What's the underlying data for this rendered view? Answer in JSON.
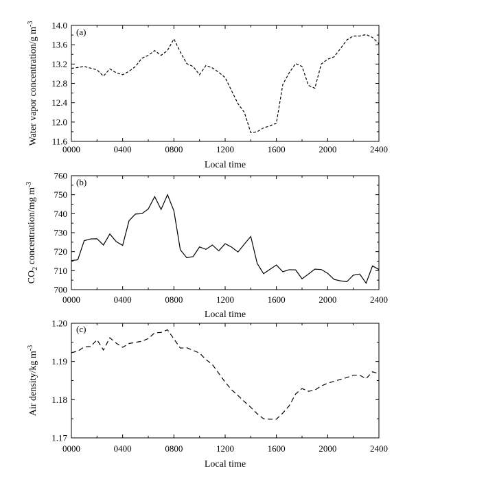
{
  "chart_data": [
    {
      "id": "a",
      "type": "line",
      "panel_label": "(a)",
      "xlabel": "Local time",
      "ylabel_main": "Water vapor concentration/g m",
      "ylabel_sup": "-3",
      "ylabel_sub": "",
      "ylabel_tail": "",
      "line_style": "short-dash",
      "xlim": [
        0,
        2400
      ],
      "ylim": [
        11.6,
        14.0
      ],
      "xticks": [
        0,
        400,
        800,
        1200,
        1600,
        2000,
        2400
      ],
      "xtick_labels": [
        "0000",
        "0400",
        "0800",
        "1200",
        "1600",
        "2000",
        "2400"
      ],
      "yticks": [
        11.6,
        12.0,
        12.4,
        12.8,
        13.2,
        13.6,
        14.0
      ],
      "ytick_labels": [
        "11.6",
        "12.0",
        "12.4",
        "12.8",
        "13.2",
        "13.6",
        "14.0"
      ],
      "x": [
        0,
        100,
        200,
        250,
        300,
        350,
        400,
        450,
        500,
        550,
        600,
        650,
        700,
        750,
        800,
        850,
        900,
        950,
        1000,
        1050,
        1100,
        1150,
        1200,
        1250,
        1300,
        1350,
        1400,
        1450,
        1500,
        1550,
        1600,
        1650,
        1700,
        1750,
        1800,
        1850,
        1900,
        1950,
        2000,
        2050,
        2100,
        2150,
        2200,
        2250,
        2300,
        2350,
        2400
      ],
      "y": [
        13.11,
        13.15,
        13.08,
        12.95,
        13.1,
        13.02,
        12.98,
        13.05,
        13.15,
        13.32,
        13.38,
        13.48,
        13.38,
        13.48,
        13.72,
        13.45,
        13.21,
        13.15,
        12.98,
        13.17,
        13.12,
        13.03,
        12.92,
        12.65,
        12.38,
        12.2,
        11.78,
        11.8,
        11.88,
        11.92,
        11.98,
        12.78,
        13.02,
        13.21,
        13.15,
        12.76,
        12.7,
        13.2,
        13.3,
        13.35,
        13.52,
        13.7,
        13.78,
        13.78,
        13.81,
        13.75,
        13.62
      ]
    },
    {
      "id": "b",
      "type": "line",
      "panel_label": "(b)",
      "xlabel": "Local time",
      "ylabel_main": "CO",
      "ylabel_sub": "2",
      "ylabel_tail": " concentration/mg m",
      "ylabel_sup": "-3",
      "line_style": "solid",
      "xlim": [
        0,
        2400
      ],
      "ylim": [
        700,
        760
      ],
      "xticks": [
        0,
        400,
        800,
        1200,
        1600,
        2000,
        2400
      ],
      "xtick_labels": [
        "0000",
        "0400",
        "0800",
        "1200",
        "1600",
        "2000",
        "2400"
      ],
      "yticks": [
        700,
        710,
        720,
        730,
        740,
        750,
        760
      ],
      "ytick_labels": [
        "700",
        "710",
        "720",
        "730",
        "740",
        "750",
        "760"
      ],
      "x": [
        0,
        50,
        100,
        150,
        200,
        250,
        300,
        350,
        400,
        450,
        500,
        550,
        600,
        650,
        700,
        750,
        800,
        850,
        900,
        950,
        1000,
        1050,
        1100,
        1150,
        1200,
        1250,
        1300,
        1350,
        1400,
        1450,
        1500,
        1550,
        1600,
        1650,
        1700,
        1750,
        1800,
        1850,
        1900,
        1950,
        2000,
        2050,
        2100,
        2150,
        2200,
        2250,
        2300,
        2350,
        2400
      ],
      "y": [
        715.3,
        715.7,
        725.8,
        726.7,
        726.8,
        723.5,
        729.3,
        725.3,
        723.3,
        736.3,
        739.8,
        740,
        742.5,
        749,
        742.2,
        750,
        741.5,
        721,
        716.8,
        717.4,
        722.5,
        721.2,
        723.5,
        720.4,
        724.2,
        722.4,
        719.8,
        724,
        728,
        713.8,
        708.4,
        710.7,
        713,
        709.4,
        710.5,
        710.4,
        705.7,
        708.2,
        710.8,
        710.6,
        708.6,
        705.4,
        704.6,
        704.2,
        707.6,
        708.2,
        703.4,
        712.5,
        710.6
      ]
    },
    {
      "id": "c",
      "type": "line",
      "panel_label": "(c)",
      "xlabel": "Local time",
      "ylabel_main": "Air density/kg m",
      "ylabel_sup": "-3",
      "ylabel_sub": "",
      "ylabel_tail": "",
      "line_style": "long-dash",
      "xlim": [
        0,
        2400
      ],
      "ylim": [
        1.17,
        1.2
      ],
      "xticks": [
        0,
        400,
        800,
        1200,
        1600,
        2000,
        2400
      ],
      "xtick_labels": [
        "0000",
        "0400",
        "0800",
        "1200",
        "1600",
        "2000",
        "2400"
      ],
      "yticks": [
        1.17,
        1.18,
        1.19,
        1.2
      ],
      "ytick_labels": [
        "1.17",
        "1.18",
        "1.19",
        "1.20"
      ],
      "x": [
        0,
        50,
        100,
        150,
        200,
        250,
        300,
        350,
        400,
        450,
        500,
        550,
        600,
        650,
        700,
        750,
        800,
        850,
        900,
        950,
        1000,
        1050,
        1100,
        1150,
        1200,
        1250,
        1300,
        1350,
        1400,
        1450,
        1500,
        1550,
        1600,
        1650,
        1700,
        1750,
        1800,
        1850,
        1900,
        1950,
        2000,
        2050,
        2100,
        2150,
        2200,
        2250,
        2300,
        2350,
        2400
      ],
      "y": [
        1.1923,
        1.1927,
        1.1938,
        1.1939,
        1.1957,
        1.193,
        1.1962,
        1.1948,
        1.1937,
        1.1947,
        1.195,
        1.1953,
        1.196,
        1.1975,
        1.1976,
        1.1983,
        1.1959,
        1.1935,
        1.1936,
        1.1929,
        1.1922,
        1.1905,
        1.1892,
        1.1869,
        1.1846,
        1.1826,
        1.1811,
        1.1795,
        1.178,
        1.1763,
        1.175,
        1.1749,
        1.1749,
        1.1765,
        1.1784,
        1.1815,
        1.1829,
        1.1822,
        1.1825,
        1.1836,
        1.1843,
        1.1848,
        1.1853,
        1.1858,
        1.1864,
        1.1864,
        1.1855,
        1.1873,
        1.1868
      ]
    }
  ]
}
